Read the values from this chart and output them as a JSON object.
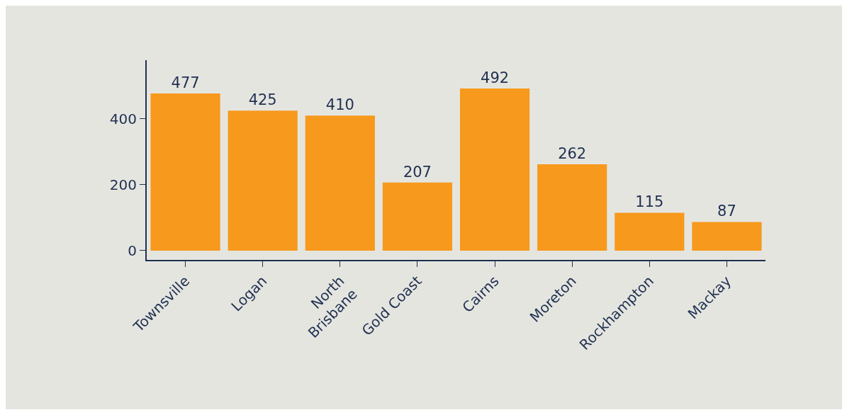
{
  "chart_data": {
    "type": "bar",
    "categories": [
      "Townsville",
      "Logan",
      "North\nBrisbane",
      "Gold Coast",
      "Cairns",
      "Moreton",
      "Rockhampton",
      "Mackay"
    ],
    "values": [
      477,
      425,
      410,
      207,
      492,
      262,
      115,
      87
    ],
    "color": "#f7991c",
    "ylim": [
      -28,
      578
    ],
    "yticks": [
      0,
      200,
      400
    ],
    "grid": false,
    "data_labels": true,
    "legend": false
  }
}
